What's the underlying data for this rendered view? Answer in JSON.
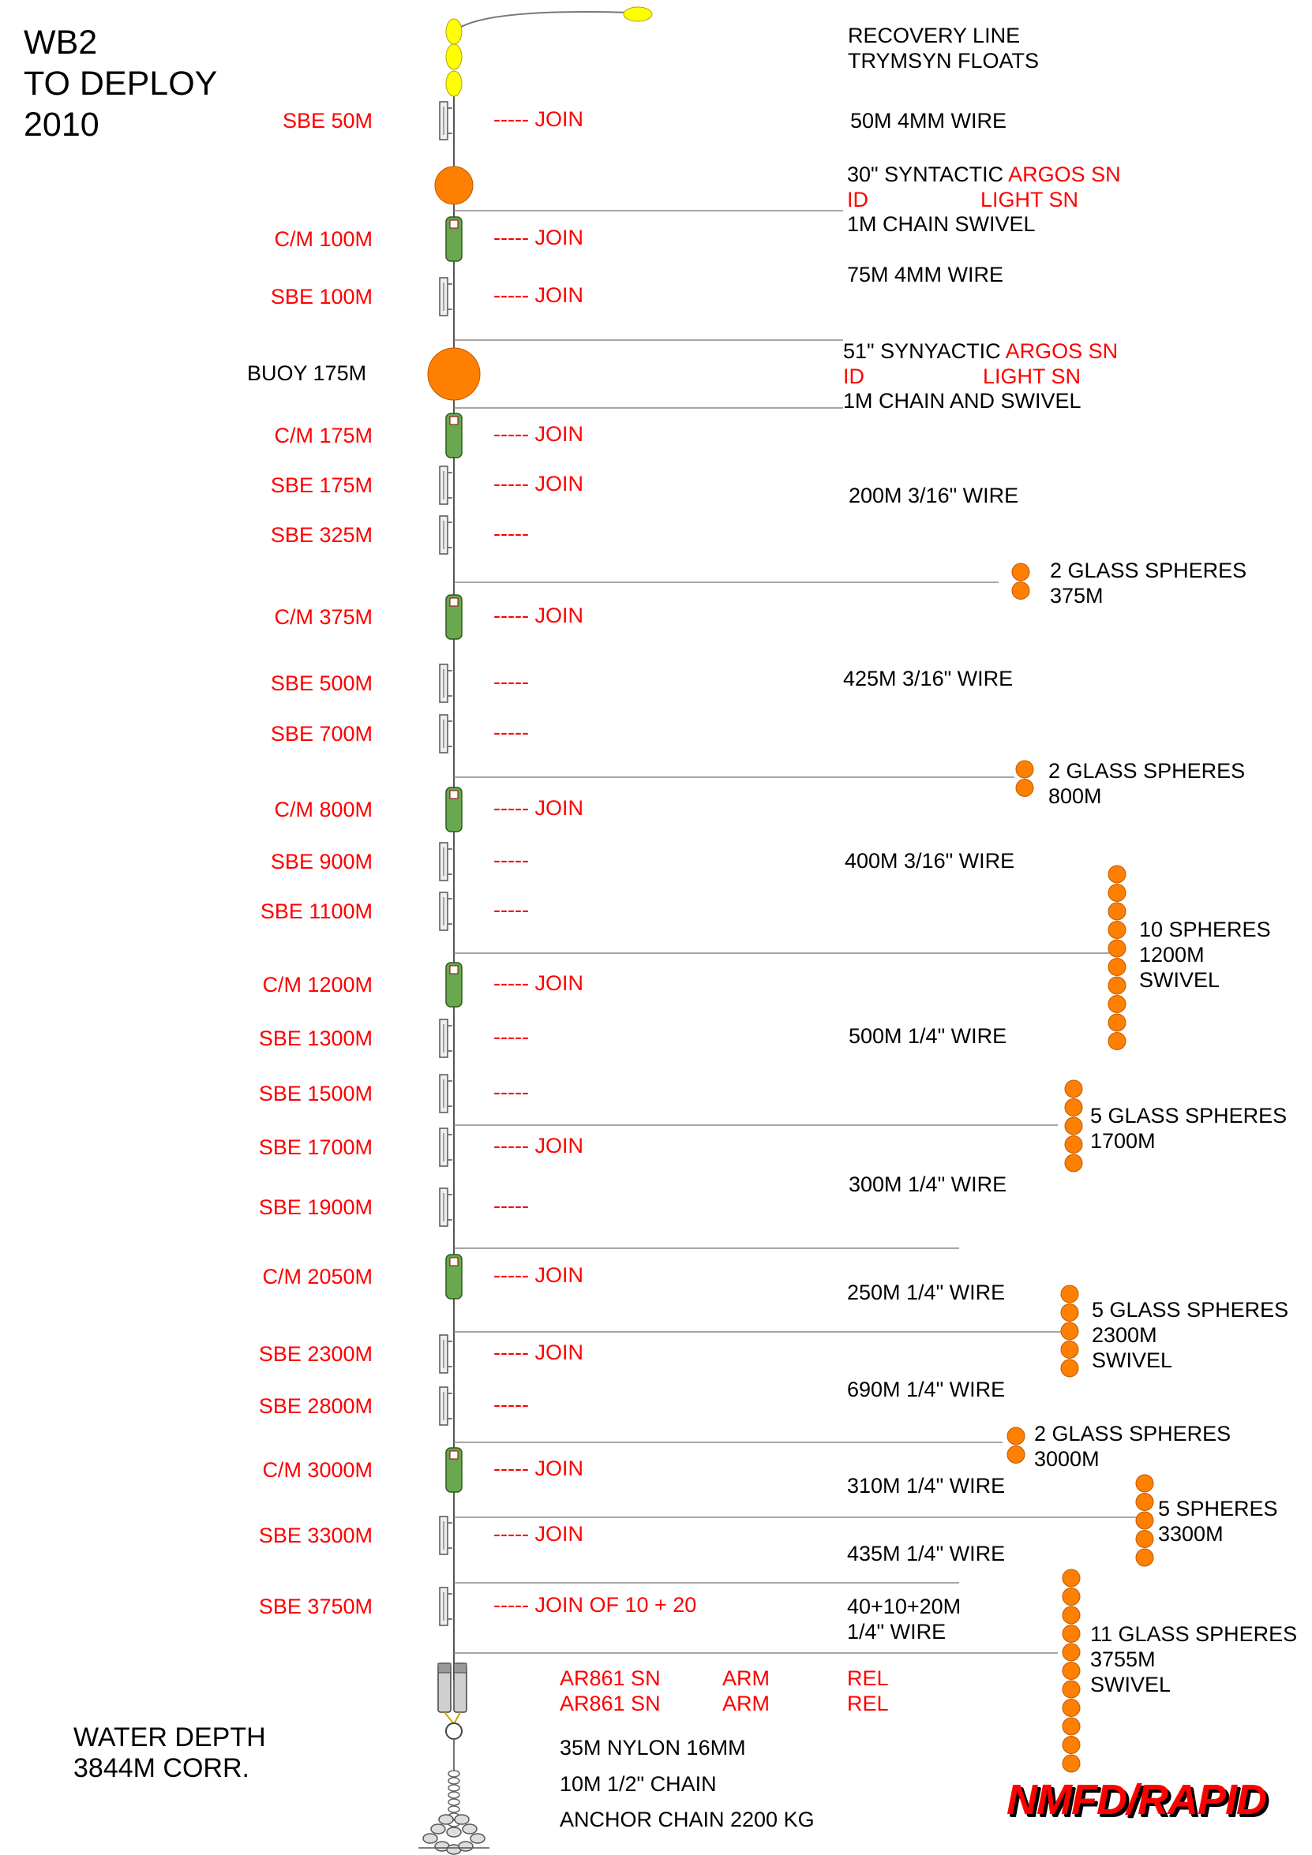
{
  "title": {
    "line1": "WB2",
    "line2": "TO DEPLOY",
    "line3": "2010"
  },
  "water_depth": {
    "line1": "WATER DEPTH",
    "line2": "3844M CORR."
  },
  "brand": "NMFD/RAPID",
  "instruments": [
    {
      "label": "SBE 50M",
      "kind": "sbe",
      "join": "----- JOIN"
    },
    {
      "label": "C/M 100M",
      "kind": "cm",
      "join": "----- JOIN"
    },
    {
      "label": "SBE 100M",
      "kind": "sbe",
      "join": "----- JOIN"
    },
    {
      "label": "C/M 175M",
      "kind": "cm",
      "join": "-----  JOIN"
    },
    {
      "label": "SBE 175M",
      "kind": "sbe",
      "join": "-----  JOIN"
    },
    {
      "label": "SBE 325M",
      "kind": "sbe",
      "join": "-----"
    },
    {
      "label": "C/M 375M",
      "kind": "cm",
      "join": "----- JOIN"
    },
    {
      "label": "SBE 500M",
      "kind": "sbe",
      "join": "-----"
    },
    {
      "label": "SBE 700M",
      "kind": "sbe",
      "join": "-----"
    },
    {
      "label": "C/M 800M",
      "kind": "cm",
      "join": "----- JOIN"
    },
    {
      "label": "SBE 900M",
      "kind": "sbe",
      "join": "-----"
    },
    {
      "label": "SBE 1100M",
      "kind": "sbe",
      "join": "-----"
    },
    {
      "label": "C/M 1200M",
      "kind": "cm",
      "join": "----- JOIN"
    },
    {
      "label": "SBE 1300M",
      "kind": "sbe",
      "join": "-----"
    },
    {
      "label": "SBE 1500M",
      "kind": "sbe",
      "join": "-----"
    },
    {
      "label": "SBE 1700M",
      "kind": "sbe",
      "join": "----- JOIN"
    },
    {
      "label": "SBE 1900M",
      "kind": "sbe",
      "join": "-----"
    },
    {
      "label": "C/M 2050M",
      "kind": "cm",
      "join": "----- JOIN"
    },
    {
      "label": "SBE 2300M",
      "kind": "sbe",
      "join": "----- JOIN"
    },
    {
      "label": "SBE 2800M",
      "kind": "sbe",
      "join": "-----"
    },
    {
      "label": "C/M 3000M",
      "kind": "cm",
      "join": "----- JOIN"
    },
    {
      "label": "SBE 3300M",
      "kind": "sbe",
      "join": "----- JOIN"
    },
    {
      "label": "SBE 3750M",
      "kind": "sbe",
      "join": "----- JOIN OF 10 + 20"
    }
  ],
  "buoy_label": "BUOY 175M",
  "notes": {
    "recovery1": "RECOVERY LINE",
    "recovery2": "TRYMSYN FLOATS",
    "wire50": "50M 4MM WIRE",
    "syn30_a": "30\" SYNTACTIC ",
    "syn30_argos": "ARGOS SN",
    "syn30_id": "ID",
    "syn30_light": "LIGHT SN",
    "syn30_chain": "1M CHAIN SWIVEL",
    "wire75": "75M 4MM WIRE",
    "syn51_a": "51\" SYNYACTIC ",
    "syn51_argos": "ARGOS SN",
    "syn51_id": "ID",
    "syn51_light": "LIGHT SN",
    "syn51_chain": "1M CHAIN AND SWIVEL",
    "wire200": "200M 3/16\" WIRE",
    "gs375_a": "2 GLASS SPHERES",
    "gs375_b": "375M",
    "wire425": "425M 3/16\" WIRE",
    "gs800_a": "2 GLASS SPHERES",
    "gs800_b": "800M",
    "wire400": "400M 3/16\" WIRE",
    "s1200_a": "10 SPHERES",
    "s1200_b": "1200M",
    "s1200_c": "SWIVEL",
    "wire500": "500M 1/4\" WIRE",
    "gs1700_a": "5 GLASS SPHERES",
    "gs1700_b": "1700M",
    "wire300": "300M 1/4\" WIRE",
    "wire250": "250M 1/4\" WIRE",
    "gs2300_a": "5 GLASS SPHERES",
    "gs2300_b": "2300M",
    "gs2300_c": "SWIVEL",
    "wire690": "690M 1/4\" WIRE",
    "gs3000_a": "2 GLASS SPHERES",
    "gs3000_b": "3000M",
    "wire310": "310M 1/4\" WIRE",
    "s3300_a": "5 SPHERES",
    "s3300_b": "3300M",
    "wire435": "435M 1/4\" WIRE",
    "wire40_a": "40+10+20M",
    "wire40_b": "1/4\" WIRE",
    "gs3755_a": "11 GLASS SPHERES",
    "gs3755_b": "3755M",
    "gs3755_c": "SWIVEL"
  },
  "release": {
    "r1_sn": "AR861 SN",
    "r1_arm": "ARM",
    "r1_rel": "REL",
    "r2_sn": "AR861 SN",
    "r2_arm": "ARM",
    "r2_rel": "REL"
  },
  "anchor": {
    "nylon": "35M NYLON 16MM",
    "chain": "10M 1/2\" CHAIN",
    "anchor": "ANCHOR CHAIN 2200 KG"
  },
  "colors": {
    "float": "#ffff00",
    "sphere": "#ff7f00",
    "cm": "#6aa84f",
    "label_red": "#ff0000"
  }
}
